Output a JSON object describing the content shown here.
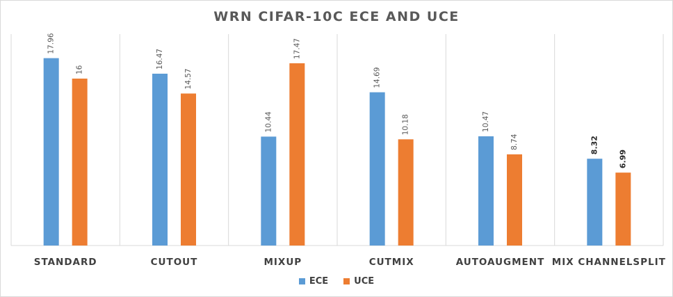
{
  "chart_data": {
    "type": "bar",
    "title": "WRN CIFAR-10C ECE AND UCE",
    "categories": [
      "STANDARD",
      "CUTOUT",
      "MIXUP",
      "CUTMIX",
      "AUTOAUGMENT",
      "MIX CHANNELSPLIT"
    ],
    "series": [
      {
        "name": "ECE",
        "color": "#5b9bd5",
        "values": [
          17.96,
          16.47,
          10.44,
          14.69,
          10.47,
          8.32
        ],
        "labels": [
          "17.96",
          "16.47",
          "10.44",
          "14.69",
          "10.47",
          "8.32"
        ]
      },
      {
        "name": "UCE",
        "color": "#ed7d31",
        "values": [
          16,
          14.57,
          17.47,
          10.18,
          8.74,
          6.99
        ],
        "labels": [
          "16",
          "14.57",
          "17.47",
          "10.18",
          "8.74",
          "6.99"
        ]
      }
    ],
    "bold_label_category": "MIX CHANNELSPLIT",
    "ylim": [
      0,
      20
    ],
    "xlabel": "",
    "ylabel": "",
    "grid": "vertical separators between categories",
    "legend_position": "bottom"
  }
}
